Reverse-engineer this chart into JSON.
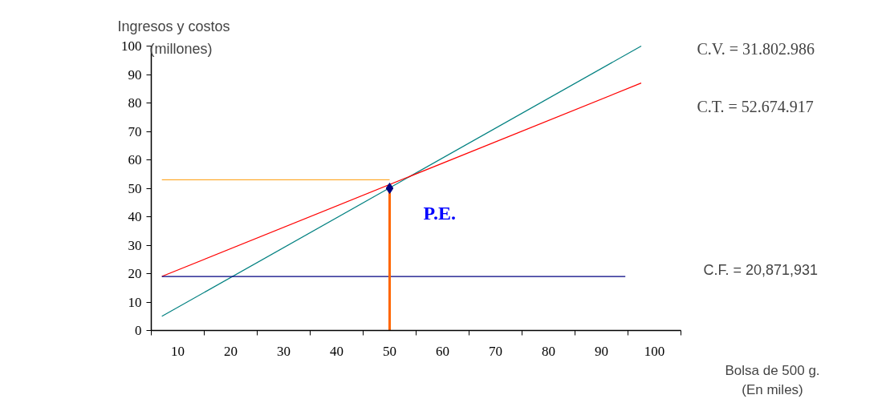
{
  "chart_data": {
    "type": "line",
    "xlabel": "Bolsa de 500 g.\n(En miles)",
    "ylabel": "Ingresos y costos\n(millones)",
    "xlim": [
      5,
      105
    ],
    "xticks": [
      {
        "value": 5,
        "label": null
      },
      10,
      {
        "value": 15,
        "label": null
      },
      20,
      {
        "value": 25,
        "label": null
      },
      30,
      {
        "value": 35,
        "label": null
      },
      40,
      {
        "value": 45,
        "label": null
      },
      50,
      {
        "value": 55,
        "label": null
      },
      60,
      {
        "value": 65,
        "label": null
      },
      70,
      {
        "value": 75,
        "label": null
      },
      80,
      {
        "value": 85,
        "label": null
      },
      90,
      {
        "value": 95,
        "label": null
      },
      100,
      {
        "value": 105,
        "label": null
      }
    ],
    "ylim": [
      0,
      100
    ],
    "yticks": [
      0,
      10,
      20,
      30,
      40,
      50,
      60,
      70,
      80,
      90,
      100
    ],
    "grid": false,
    "series": [
      {
        "color": "#008080",
        "x": [
          7,
          97.5
        ],
        "values": [
          5,
          100
        ]
      },
      {
        "color": "#ff0000",
        "x": [
          7,
          97.5
        ],
        "values": [
          19,
          87
        ]
      },
      {
        "color": "#000080",
        "x": [
          7,
          94.5
        ],
        "values": [
          19,
          19
        ]
      },
      {
        "color": "#ff9900",
        "x": [
          7,
          50
        ],
        "values": [
          53,
          53
        ]
      },
      {
        "color": "#ff6600",
        "x": [
          50,
          50
        ],
        "values": [
          0,
          50
        ]
      },
      {
        "type": "scatter",
        "color": "#000080",
        "marker": "diamond",
        "x": [
          50
        ],
        "values": [
          50
        ]
      }
    ],
    "annotations": [
      {
        "text": "P.E.",
        "x": 50,
        "y": 50
      },
      "C.V. = 31.802.986",
      "C.T. = 52.674.917",
      "C.F. = 20,871,931"
    ]
  }
}
